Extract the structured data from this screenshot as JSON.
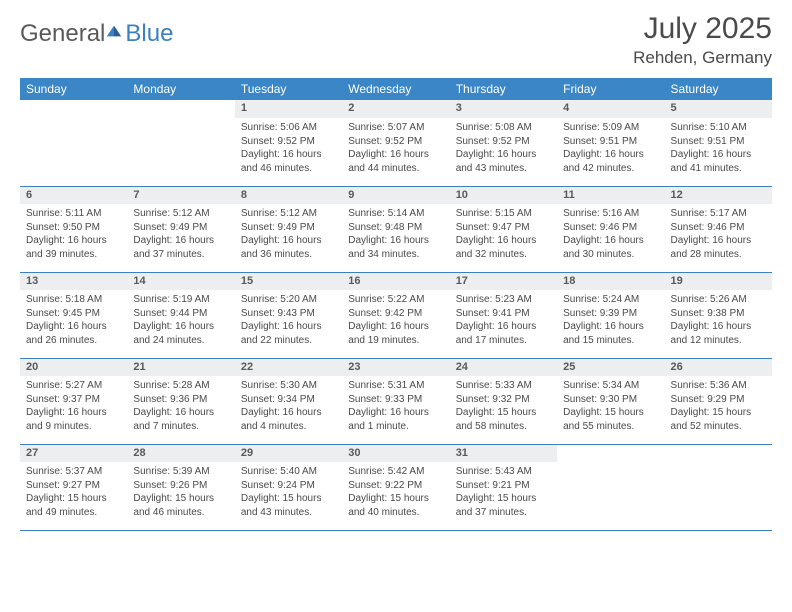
{
  "brand": {
    "part1": "General",
    "part2": "Blue"
  },
  "title": "July 2025",
  "location": "Rehden, Germany",
  "colors": {
    "header_bg": "#3b86c6",
    "header_text": "#ffffff",
    "daynum_bg": "#eceeef",
    "daynum_text": "#5a5a5a",
    "cell_text": "#4a4a4a",
    "rule": "#3b7fc4",
    "logo_gray": "#5a5a5a",
    "logo_blue": "#3b7fc4"
  },
  "weekdays": [
    "Sunday",
    "Monday",
    "Tuesday",
    "Wednesday",
    "Thursday",
    "Friday",
    "Saturday"
  ],
  "weeks": [
    {
      "nums": [
        "",
        "",
        "1",
        "2",
        "3",
        "4",
        "5"
      ],
      "cells": [
        "",
        "",
        "Sunrise: 5:06 AM\nSunset: 9:52 PM\nDaylight: 16 hours and 46 minutes.",
        "Sunrise: 5:07 AM\nSunset: 9:52 PM\nDaylight: 16 hours and 44 minutes.",
        "Sunrise: 5:08 AM\nSunset: 9:52 PM\nDaylight: 16 hours and 43 minutes.",
        "Sunrise: 5:09 AM\nSunset: 9:51 PM\nDaylight: 16 hours and 42 minutes.",
        "Sunrise: 5:10 AM\nSunset: 9:51 PM\nDaylight: 16 hours and 41 minutes."
      ]
    },
    {
      "nums": [
        "6",
        "7",
        "8",
        "9",
        "10",
        "11",
        "12"
      ],
      "cells": [
        "Sunrise: 5:11 AM\nSunset: 9:50 PM\nDaylight: 16 hours and 39 minutes.",
        "Sunrise: 5:12 AM\nSunset: 9:49 PM\nDaylight: 16 hours and 37 minutes.",
        "Sunrise: 5:12 AM\nSunset: 9:49 PM\nDaylight: 16 hours and 36 minutes.",
        "Sunrise: 5:14 AM\nSunset: 9:48 PM\nDaylight: 16 hours and 34 minutes.",
        "Sunrise: 5:15 AM\nSunset: 9:47 PM\nDaylight: 16 hours and 32 minutes.",
        "Sunrise: 5:16 AM\nSunset: 9:46 PM\nDaylight: 16 hours and 30 minutes.",
        "Sunrise: 5:17 AM\nSunset: 9:46 PM\nDaylight: 16 hours and 28 minutes."
      ]
    },
    {
      "nums": [
        "13",
        "14",
        "15",
        "16",
        "17",
        "18",
        "19"
      ],
      "cells": [
        "Sunrise: 5:18 AM\nSunset: 9:45 PM\nDaylight: 16 hours and 26 minutes.",
        "Sunrise: 5:19 AM\nSunset: 9:44 PM\nDaylight: 16 hours and 24 minutes.",
        "Sunrise: 5:20 AM\nSunset: 9:43 PM\nDaylight: 16 hours and 22 minutes.",
        "Sunrise: 5:22 AM\nSunset: 9:42 PM\nDaylight: 16 hours and 19 minutes.",
        "Sunrise: 5:23 AM\nSunset: 9:41 PM\nDaylight: 16 hours and 17 minutes.",
        "Sunrise: 5:24 AM\nSunset: 9:39 PM\nDaylight: 16 hours and 15 minutes.",
        "Sunrise: 5:26 AM\nSunset: 9:38 PM\nDaylight: 16 hours and 12 minutes."
      ]
    },
    {
      "nums": [
        "20",
        "21",
        "22",
        "23",
        "24",
        "25",
        "26"
      ],
      "cells": [
        "Sunrise: 5:27 AM\nSunset: 9:37 PM\nDaylight: 16 hours and 9 minutes.",
        "Sunrise: 5:28 AM\nSunset: 9:36 PM\nDaylight: 16 hours and 7 minutes.",
        "Sunrise: 5:30 AM\nSunset: 9:34 PM\nDaylight: 16 hours and 4 minutes.",
        "Sunrise: 5:31 AM\nSunset: 9:33 PM\nDaylight: 16 hours and 1 minute.",
        "Sunrise: 5:33 AM\nSunset: 9:32 PM\nDaylight: 15 hours and 58 minutes.",
        "Sunrise: 5:34 AM\nSunset: 9:30 PM\nDaylight: 15 hours and 55 minutes.",
        "Sunrise: 5:36 AM\nSunset: 9:29 PM\nDaylight: 15 hours and 52 minutes."
      ]
    },
    {
      "nums": [
        "27",
        "28",
        "29",
        "30",
        "31",
        "",
        ""
      ],
      "cells": [
        "Sunrise: 5:37 AM\nSunset: 9:27 PM\nDaylight: 15 hours and 49 minutes.",
        "Sunrise: 5:39 AM\nSunset: 9:26 PM\nDaylight: 15 hours and 46 minutes.",
        "Sunrise: 5:40 AM\nSunset: 9:24 PM\nDaylight: 15 hours and 43 minutes.",
        "Sunrise: 5:42 AM\nSunset: 9:22 PM\nDaylight: 15 hours and 40 minutes.",
        "Sunrise: 5:43 AM\nSunset: 9:21 PM\nDaylight: 15 hours and 37 minutes.",
        "",
        ""
      ]
    }
  ]
}
